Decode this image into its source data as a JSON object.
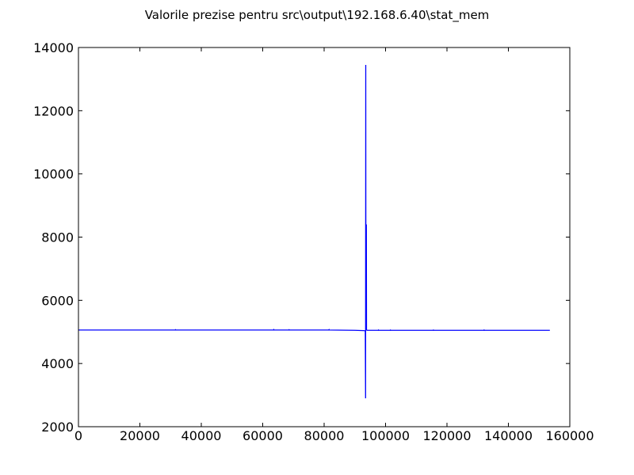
{
  "chart_data": {
    "type": "line",
    "title": "Valorile prezise pentru src\\output\\192.168.6.40\\stat_mem",
    "xlabel": "",
    "ylabel": "",
    "xlim": [
      0,
      160000
    ],
    "ylim": [
      2000,
      14000
    ],
    "x_ticks": [
      0,
      20000,
      40000,
      60000,
      80000,
      100000,
      120000,
      140000,
      160000
    ],
    "y_ticks": [
      2000,
      4000,
      6000,
      8000,
      10000,
      12000,
      14000
    ],
    "grid": false,
    "legend": "none",
    "series": [
      {
        "color": "#0000ff",
        "points": [
          [
            0,
            5060
          ],
          [
            31500,
            5060
          ],
          [
            31600,
            5070
          ],
          [
            31700,
            5060
          ],
          [
            63500,
            5060
          ],
          [
            63600,
            5075
          ],
          [
            63700,
            5060
          ],
          [
            68500,
            5060
          ],
          [
            68600,
            5070
          ],
          [
            68700,
            5060
          ],
          [
            81500,
            5060
          ],
          [
            81600,
            5075
          ],
          [
            81700,
            5060
          ],
          [
            90000,
            5050
          ],
          [
            93000,
            5040
          ],
          [
            93400,
            5030
          ],
          [
            93500,
            2900
          ],
          [
            93550,
            13450
          ],
          [
            93600,
            5050
          ],
          [
            93650,
            8400
          ],
          [
            93700,
            5050
          ],
          [
            93750,
            8400
          ],
          [
            93800,
            5060
          ],
          [
            94000,
            5050
          ],
          [
            97600,
            5050
          ],
          [
            97700,
            5060
          ],
          [
            97800,
            5050
          ],
          [
            101500,
            5050
          ],
          [
            101600,
            5060
          ],
          [
            101700,
            5050
          ],
          [
            115500,
            5050
          ],
          [
            115600,
            5060
          ],
          [
            115700,
            5050
          ],
          [
            132000,
            5050
          ],
          [
            132100,
            5060
          ],
          [
            132200,
            5050
          ],
          [
            153500,
            5050
          ]
        ]
      }
    ]
  }
}
